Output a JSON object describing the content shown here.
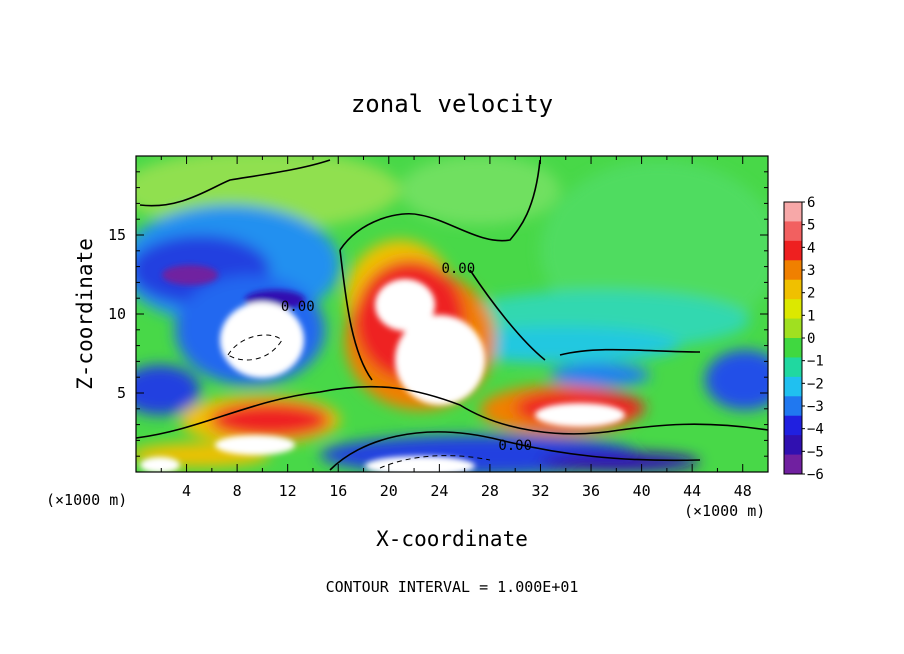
{
  "chart_data": {
    "type": "heatmap",
    "title": "zonal velocity",
    "xlabel": "X-coordinate",
    "ylabel": "Z-coordinate",
    "x_units": "(×1000 m)",
    "z_units": "(×1000 m)",
    "xlim": [
      0,
      50
    ],
    "zlim": [
      0,
      20
    ],
    "x_ticks": [
      4,
      8,
      12,
      16,
      20,
      24,
      28,
      32,
      36,
      40,
      44,
      48
    ],
    "z_ticks": [
      5,
      10,
      15
    ],
    "colorbar": {
      "levels": [
        6,
        5,
        4,
        3,
        2,
        1,
        0,
        -1,
        -2,
        -3,
        -4,
        -5,
        -6
      ],
      "colors": [
        "#f7a8a8",
        "#f26060",
        "#ee2020",
        "#f08000",
        "#f0c000",
        "#dce800",
        "#a0e020",
        "#40d840",
        "#20d8a0",
        "#20c0f0",
        "#2078f0",
        "#2020e0",
        "#3010b0",
        "#7020a0"
      ]
    },
    "contour_labels": [
      {
        "text": "0.00",
        "x": 12.8,
        "z": 10.2
      },
      {
        "text": "0.00",
        "x": 25.5,
        "z": 12.6
      },
      {
        "text": "0.00",
        "x": 30.0,
        "z": 1.4
      }
    ],
    "annotation": "CONTOUR INTERVAL = 1.000E+01"
  }
}
